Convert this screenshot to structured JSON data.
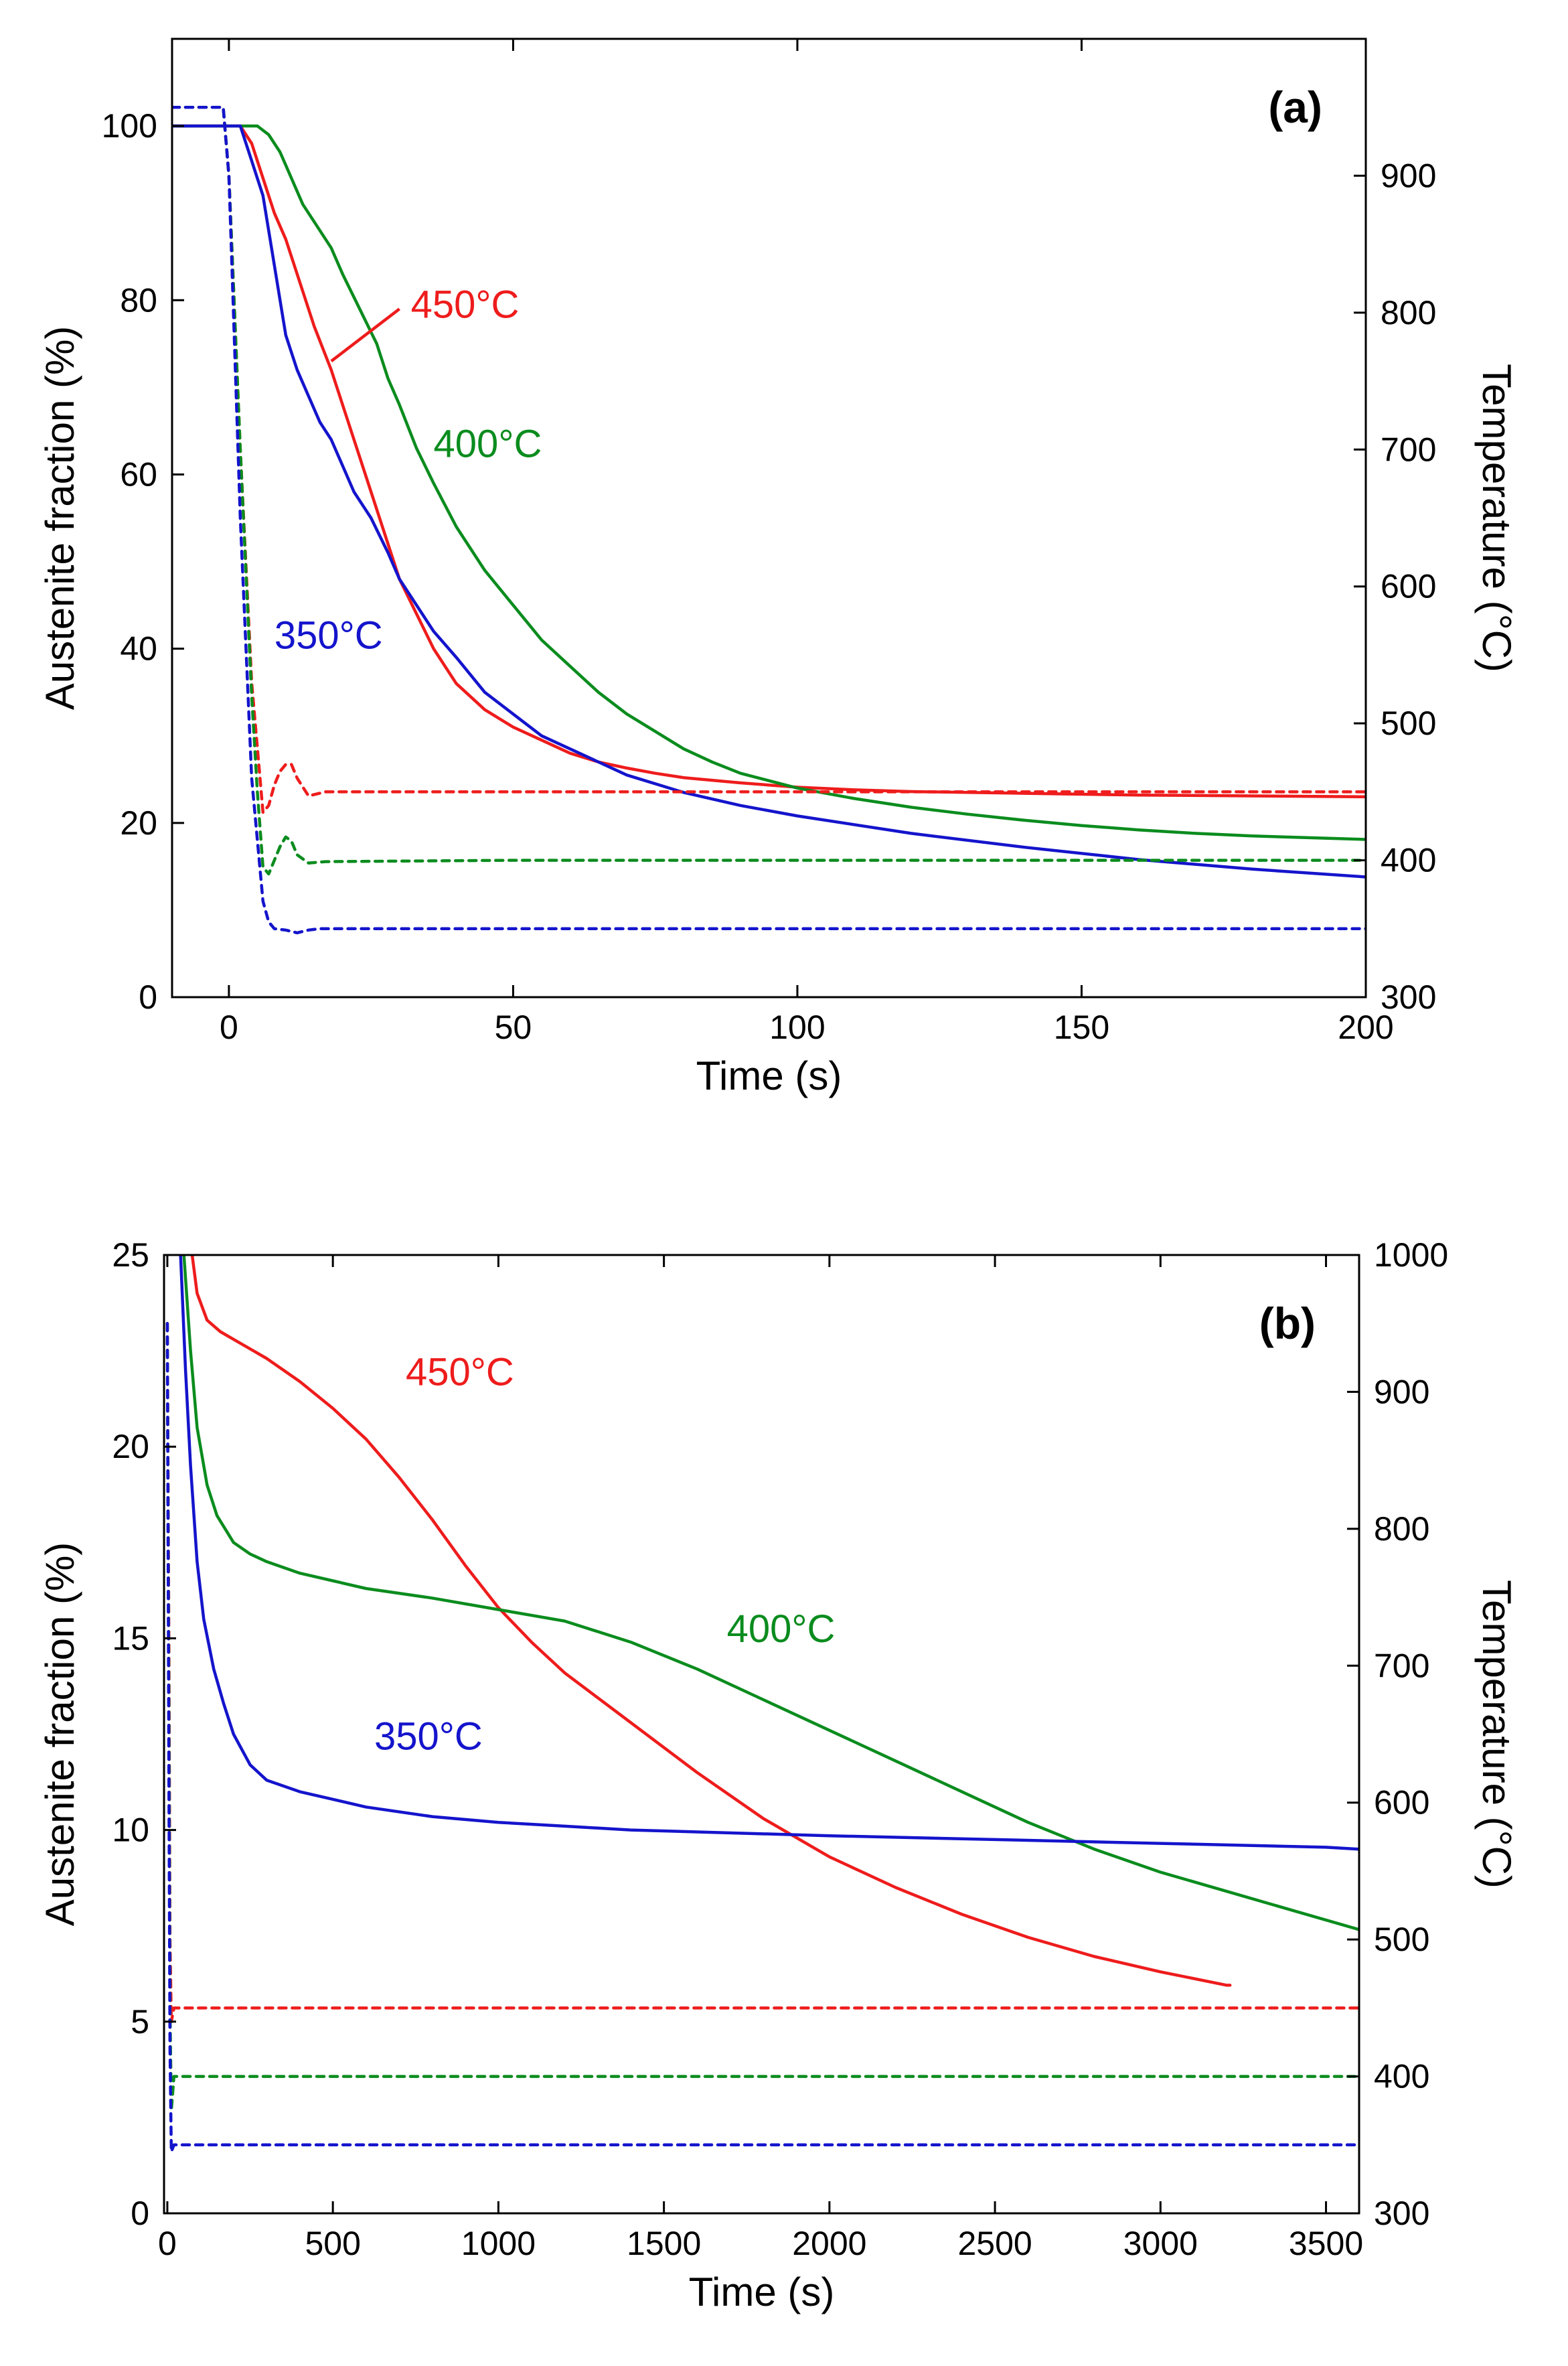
{
  "colors": {
    "450": "#ee1c1c",
    "400": "#0b8c1e",
    "350": "#1414cc",
    "axis": "#000000"
  },
  "chart_data": [
    {
      "type": "line",
      "panel_label": "(a)",
      "title": "",
      "xlabel": "Time (s)",
      "ylabel": "Austenite fraction (%)",
      "y2label": "Temperature (°C)",
      "xlim": [
        -10,
        200
      ],
      "ylim": [
        0,
        110
      ],
      "y2lim": [
        300,
        1000
      ],
      "xticks": [
        0,
        50,
        100,
        150,
        200
      ],
      "xtick_labels": [
        "0",
        "50",
        "100",
        "150",
        "200"
      ],
      "yticks": [
        0,
        20,
        40,
        60,
        80,
        100
      ],
      "ytick_labels": [
        "0",
        "20",
        "40",
        "60",
        "80",
        "100"
      ],
      "y2ticks": [
        300,
        400,
        500,
        600,
        700,
        800,
        900
      ],
      "y2tick_labels": [
        "300",
        "400",
        "500",
        "600",
        "700",
        "800",
        "900"
      ],
      "series": [
        {
          "name": "450°C",
          "key": "450",
          "style": "solid",
          "axis": "left",
          "x": [
            -10,
            0,
            2,
            4,
            6,
            8,
            10,
            12,
            15,
            18,
            20,
            22,
            25,
            28,
            30,
            33,
            36,
            40,
            45,
            50,
            55,
            60,
            65,
            70,
            75,
            80,
            90,
            100,
            110,
            120,
            140,
            160,
            180,
            200
          ],
          "y": [
            100,
            100,
            100,
            98,
            94,
            90,
            87,
            83,
            77,
            72,
            68,
            64,
            58,
            52,
            48,
            44,
            40,
            36,
            33,
            31,
            29.5,
            28,
            27,
            26.3,
            25.7,
            25.2,
            24.6,
            24.1,
            23.8,
            23.6,
            23.4,
            23.2,
            23.1,
            23
          ]
        },
        {
          "name": "400°C",
          "key": "400",
          "style": "solid",
          "axis": "left",
          "x": [
            -10,
            0,
            5,
            7,
            9,
            11,
            13,
            15,
            18,
            20,
            23,
            26,
            28,
            30,
            33,
            36,
            40,
            45,
            50,
            55,
            60,
            65,
            70,
            75,
            80,
            85,
            90,
            100,
            110,
            120,
            130,
            140,
            150,
            160,
            170,
            180,
            190,
            200
          ],
          "y": [
            100,
            100,
            100,
            99,
            97,
            94,
            91,
            89,
            86,
            83,
            79,
            75,
            71,
            68,
            63,
            59,
            54,
            49,
            45,
            41,
            38,
            35,
            32.5,
            30.5,
            28.5,
            27,
            25.7,
            24,
            22.8,
            21.8,
            21,
            20.3,
            19.7,
            19.2,
            18.8,
            18.5,
            18.3,
            18.1
          ]
        },
        {
          "name": "350°C",
          "key": "350",
          "style": "solid",
          "axis": "left",
          "x": [
            -10,
            0,
            2,
            4,
            6,
            7,
            8,
            9,
            10,
            12,
            14,
            16,
            18,
            20,
            22,
            25,
            28,
            30,
            33,
            36,
            40,
            45,
            50,
            55,
            60,
            70,
            80,
            90,
            100,
            120,
            140,
            160,
            180,
            200
          ],
          "y": [
            100,
            100,
            100,
            96,
            92,
            88,
            84,
            80,
            76,
            72,
            69,
            66,
            64,
            61,
            58,
            55,
            51,
            48,
            45,
            42,
            39,
            35,
            32.5,
            30,
            28.5,
            25.5,
            23.5,
            22,
            20.8,
            18.8,
            17.2,
            15.8,
            14.7,
            13.8
          ]
        },
        {
          "name": "450°C temperature",
          "key": "450",
          "style": "dashed",
          "axis": "right",
          "x": [
            -10,
            -1,
            0,
            2,
            4,
            6,
            7,
            8,
            9,
            10,
            11,
            12,
            14,
            17,
            50,
            100,
            150,
            200
          ],
          "y": [
            950,
            950,
            900,
            700,
            530,
            435,
            440,
            455,
            465,
            470,
            470,
            460,
            447,
            450,
            450,
            450,
            450,
            450
          ]
        },
        {
          "name": "400°C temperature",
          "key": "400",
          "style": "dashed",
          "axis": "right",
          "x": [
            -10,
            -1,
            0,
            2,
            4,
            5,
            6,
            7,
            8,
            9,
            10,
            11,
            12,
            14,
            17,
            50,
            100,
            150,
            200
          ],
          "y": [
            950,
            950,
            900,
            700,
            520,
            450,
            395,
            390,
            400,
            410,
            417,
            414,
            404,
            398,
            399,
            400,
            400,
            400,
            400
          ]
        },
        {
          "name": "350°C temperature",
          "key": "350",
          "style": "dashed",
          "axis": "right",
          "x": [
            -10,
            -1,
            0,
            2,
            4,
            6,
            7,
            8,
            10,
            12,
            14,
            16,
            18,
            50,
            100,
            150,
            200
          ],
          "y": [
            950,
            950,
            900,
            650,
            460,
            370,
            355,
            350,
            349,
            347,
            349,
            350,
            350,
            350,
            350,
            350,
            350
          ]
        }
      ],
      "annotations": [
        {
          "text": "450°C",
          "key": "450",
          "at": [
            32,
            78
          ],
          "anchor": "start"
        },
        {
          "text": "400°C",
          "key": "400",
          "at": [
            36,
            62
          ],
          "anchor": "start"
        },
        {
          "text": "350°C",
          "key": "350",
          "at": [
            8,
            40
          ],
          "anchor": "start"
        }
      ],
      "leader_line": {
        "key": "450",
        "from": [
          18,
          73
        ],
        "to": [
          30,
          79
        ]
      }
    },
    {
      "type": "line",
      "panel_label": "(b)",
      "title": "",
      "xlabel": "Time (s)",
      "ylabel": "Austenite fraction (%)",
      "y2label": "Temperature (°C)",
      "xlim": [
        -10,
        3600
      ],
      "ylim": [
        0,
        25
      ],
      "y2lim": [
        300,
        1000
      ],
      "xticks": [
        0,
        500,
        1000,
        1500,
        2000,
        2500,
        3000,
        3500
      ],
      "xtick_labels": [
        "0",
        "500",
        "1000",
        "1500",
        "2000",
        "2500",
        "3000",
        "3500"
      ],
      "yticks": [
        0,
        5,
        10,
        15,
        20,
        25
      ],
      "ytick_labels": [
        "0",
        "5",
        "10",
        "15",
        "20",
        "25"
      ],
      "y2ticks": [
        300,
        400,
        500,
        600,
        700,
        800,
        900,
        1000
      ],
      "y2tick_labels": [
        "300",
        "400",
        "500",
        "600",
        "700",
        "800",
        "900",
        "1000"
      ],
      "series": [
        {
          "name": "450°C",
          "key": "450",
          "style": "solid",
          "axis": "left",
          "x": [
            75,
            90,
            120,
            160,
            200,
            300,
            400,
            500,
            600,
            700,
            800,
            900,
            1000,
            1100,
            1200,
            1400,
            1600,
            1800,
            2000,
            2200,
            2400,
            2600,
            2800,
            3000,
            3200,
            3210
          ],
          "y": [
            25,
            24,
            23.3,
            23,
            22.8,
            22.3,
            21.7,
            21,
            20.2,
            19.2,
            18.1,
            16.9,
            15.8,
            14.9,
            14.1,
            12.8,
            11.5,
            10.3,
            9.3,
            8.5,
            7.8,
            7.2,
            6.7,
            6.3,
            5.95,
            5.95
          ]
        },
        {
          "name": "400°C",
          "key": "400",
          "style": "solid",
          "axis": "left",
          "x": [
            50,
            70,
            90,
            120,
            150,
            200,
            250,
            300,
            400,
            500,
            600,
            800,
            1000,
            1200,
            1400,
            1600,
            1800,
            2000,
            2200,
            2400,
            2600,
            2800,
            3000,
            3200,
            3400,
            3600
          ],
          "y": [
            25,
            22.5,
            20.5,
            19,
            18.2,
            17.5,
            17.2,
            17,
            16.7,
            16.5,
            16.3,
            16.05,
            15.75,
            15.45,
            14.9,
            14.2,
            13.4,
            12.6,
            11.8,
            11,
            10.2,
            9.5,
            8.9,
            8.4,
            7.9,
            7.4
          ]
        },
        {
          "name": "350°C",
          "key": "350",
          "style": "solid",
          "axis": "left",
          "x": [
            40,
            55,
            70,
            90,
            110,
            140,
            170,
            200,
            250,
            300,
            400,
            500,
            600,
            800,
            1000,
            1200,
            1400,
            1600,
            2000,
            2500,
            3000,
            3500,
            3600
          ],
          "y": [
            25,
            22,
            19.5,
            17,
            15.5,
            14.2,
            13.3,
            12.5,
            11.7,
            11.3,
            11,
            10.8,
            10.6,
            10.35,
            10.2,
            10.1,
            10,
            9.95,
            9.85,
            9.75,
            9.65,
            9.55,
            9.5
          ]
        },
        {
          "name": "450°C temperature",
          "key": "450",
          "style": "dashed",
          "axis": "right",
          "x": [
            0,
            5,
            8,
            12,
            20,
            60,
            3600
          ],
          "y": [
            950,
            700,
            500,
            440,
            450,
            450,
            450
          ]
        },
        {
          "name": "400°C temperature",
          "key": "400",
          "style": "dashed",
          "axis": "right",
          "x": [
            0,
            5,
            8,
            12,
            20,
            60,
            3600
          ],
          "y": [
            950,
            650,
            450,
            375,
            400,
            400,
            400
          ]
        },
        {
          "name": "350°C temperature",
          "key": "350",
          "style": "dashed",
          "axis": "right",
          "x": [
            0,
            5,
            8,
            12,
            20,
            60,
            3600
          ],
          "y": [
            950,
            600,
            420,
            345,
            350,
            350,
            350
          ]
        }
      ],
      "annotations": [
        {
          "text": "450°C",
          "key": "450",
          "at": [
            720,
            21.6
          ],
          "anchor": "start"
        },
        {
          "text": "400°C",
          "key": "400",
          "at": [
            1690,
            14.9
          ],
          "anchor": "start"
        },
        {
          "text": "350°C",
          "key": "350",
          "at": [
            625,
            12.1
          ],
          "anchor": "start"
        }
      ]
    }
  ]
}
